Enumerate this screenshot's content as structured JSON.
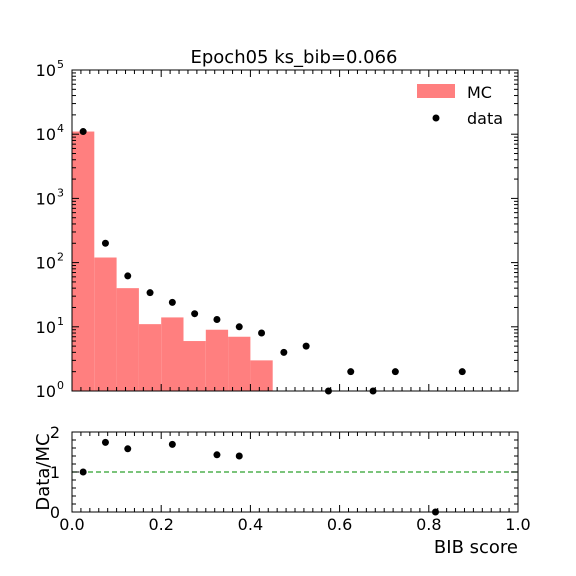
{
  "chart_data": [
    {
      "type": "bar",
      "title": "Epoch05 ks_bib=0.066",
      "xlabel": "",
      "ylabel": "",
      "xlim": [
        0,
        1
      ],
      "ylim": [
        1,
        100000
      ],
      "yscale": "log",
      "bin_edges": [
        0.0,
        0.05,
        0.1,
        0.15,
        0.2,
        0.25,
        0.3,
        0.35,
        0.4,
        0.45,
        0.5,
        0.55,
        0.6,
        0.65,
        0.7,
        0.75,
        0.8,
        0.85,
        0.9,
        0.95,
        1.0
      ],
      "series": [
        {
          "name": "MC",
          "kind": "histogram",
          "color": "#ff7f7f",
          "values": [
            11000,
            120,
            40,
            11,
            14,
            6,
            9,
            7,
            3,
            0,
            0,
            0,
            0,
            0,
            0,
            0,
            0,
            0,
            0,
            0
          ]
        },
        {
          "name": "data",
          "kind": "points",
          "color": "#000000",
          "x": [
            0.025,
            0.075,
            0.125,
            0.175,
            0.225,
            0.275,
            0.325,
            0.375,
            0.425,
            0.475,
            0.525,
            0.575,
            0.625,
            0.675,
            0.725,
            0.775,
            0.825,
            0.875,
            0.925,
            0.975
          ],
          "y": [
            11000,
            200,
            62,
            34,
            24,
            16,
            13,
            10,
            8,
            4,
            5,
            1,
            2,
            1,
            2,
            0,
            0,
            2,
            0,
            0
          ]
        }
      ],
      "legend": "top-right",
      "yticks": [
        {
          "value": 1,
          "base": "10",
          "exp": "0"
        },
        {
          "value": 10,
          "base": "10",
          "exp": "1"
        },
        {
          "value": 100,
          "base": "10",
          "exp": "2"
        },
        {
          "value": 1000,
          "base": "10",
          "exp": "3"
        },
        {
          "value": 10000,
          "base": "10",
          "exp": "4"
        },
        {
          "value": 100000,
          "base": "10",
          "exp": "5"
        }
      ]
    },
    {
      "type": "scatter",
      "xlabel": "BIB score",
      "ylabel": "Data/MC",
      "xlim": [
        0,
        1
      ],
      "ylim": [
        0,
        2
      ],
      "reference_line": {
        "y": 1,
        "style": "dashed",
        "color": "#2ca02c"
      },
      "xticks": [
        "0.0",
        "0.2",
        "0.4",
        "0.6",
        "0.8",
        "1.0"
      ],
      "yticks": [
        "0",
        "1",
        "2"
      ],
      "series": [
        {
          "name": "",
          "color": "#000000",
          "x": [
            0.025,
            0.075,
            0.125,
            0.225,
            0.325,
            0.375,
            0.815
          ],
          "y": [
            1.0,
            1.74,
            1.58,
            1.69,
            1.43,
            1.4,
            0.0
          ]
        }
      ]
    }
  ]
}
